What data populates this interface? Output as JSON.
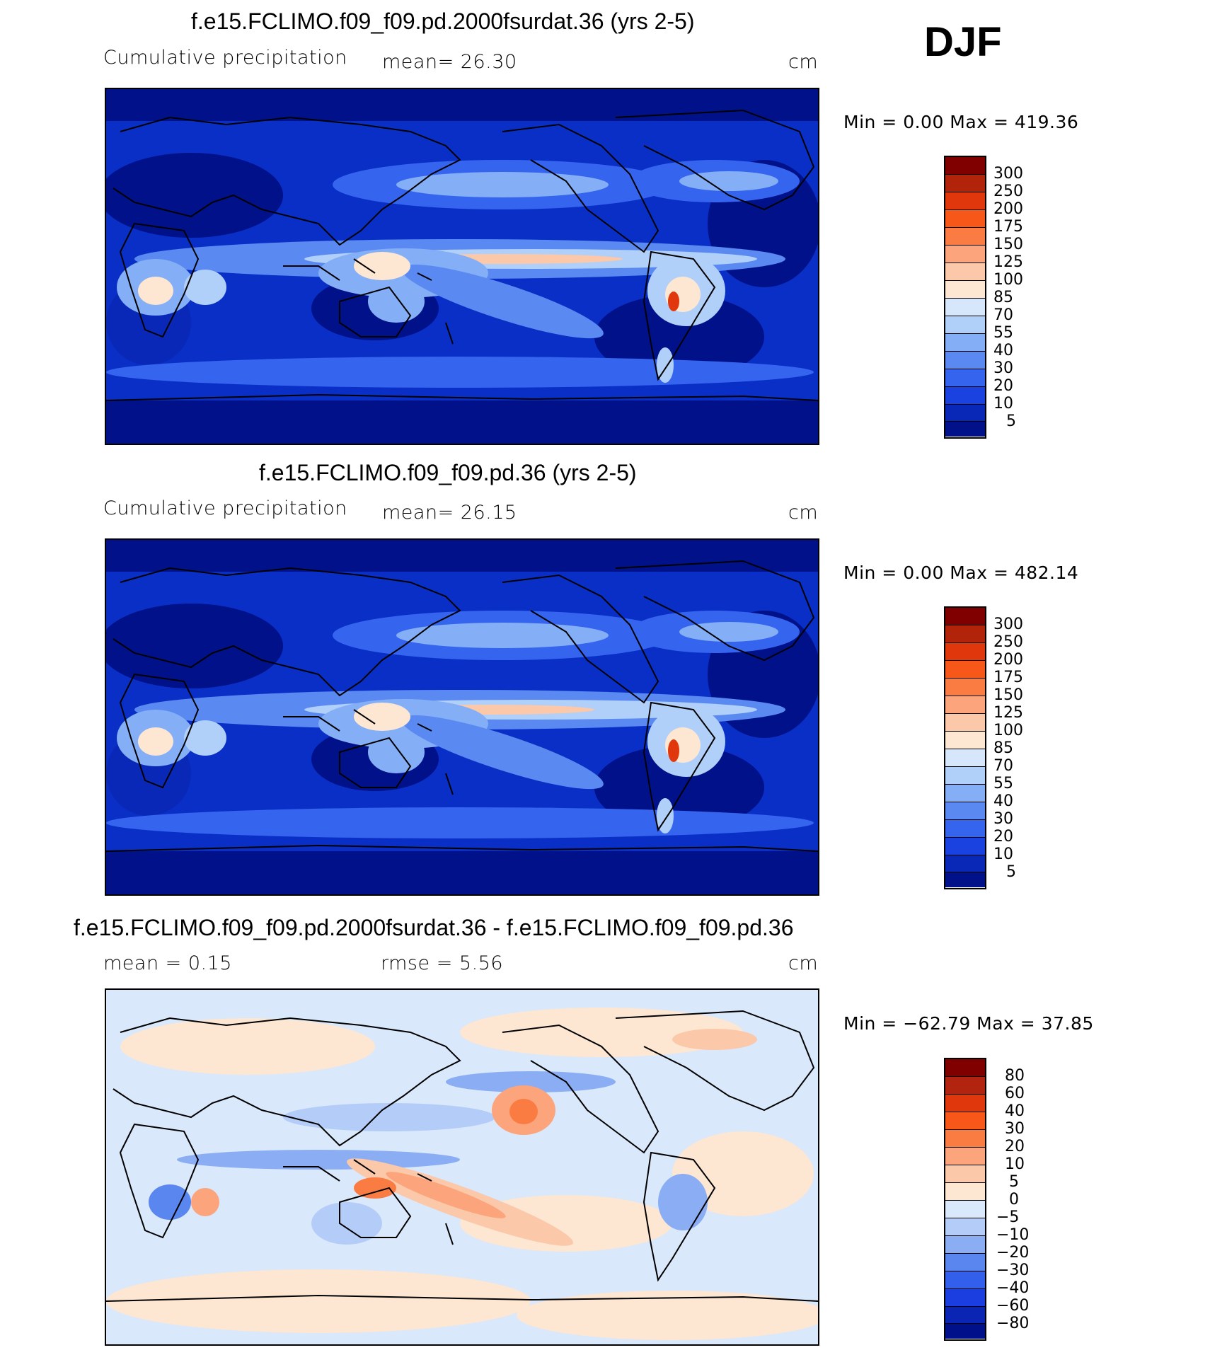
{
  "season_label": "DJF",
  "panels": [
    {
      "title": "f.e15.FCLIMO.f09_f09.pd.2000fsurdat.36 (yrs 2-5)",
      "left_label": "Cumulative precipitation",
      "stat_text": "mean=   26.30",
      "units": "cm",
      "minmax": "Min =    0.00 Max = 419.36",
      "colorbar_levels": [
        "300",
        "250",
        "200",
        "175",
        "150",
        "125",
        "100",
        "85",
        "70",
        "55",
        "40",
        "30",
        "20",
        "10",
        "5"
      ]
    },
    {
      "title": "f.e15.FCLIMO.f09_f09.pd.36 (yrs 2-5)",
      "left_label": "Cumulative precipitation",
      "stat_text": "mean=   26.15",
      "units": "cm",
      "minmax": "Min =    0.00 Max = 482.14",
      "colorbar_levels": [
        "300",
        "250",
        "200",
        "175",
        "150",
        "125",
        "100",
        "85",
        "70",
        "55",
        "40",
        "30",
        "20",
        "10",
        "5"
      ]
    },
    {
      "title": "f.e15.FCLIMO.f09_f09.pd.2000fsurdat.36 - f.e15.FCLIMO.f09_f09.pd.36",
      "left_label": "mean =    0.15",
      "stat_text": "rmse =    5.56",
      "units": "cm",
      "minmax": "Min = −62.79 Max =   37.85",
      "colorbar_levels": [
        "80",
        "60",
        "40",
        "30",
        "20",
        "10",
        "5",
        "0",
        "−5",
        "−10",
        "−20",
        "−30",
        "−40",
        "−60",
        "−80"
      ]
    }
  ],
  "colors": {
    "precip_scale": [
      "#800000",
      "#b2240a",
      "#e0380c",
      "#f8571a",
      "#fb7c43",
      "#fca47c",
      "#fcc8aa",
      "#fde6d2",
      "#d6e7fb",
      "#b0cff9",
      "#84aef5",
      "#5a8af1",
      "#3564ee",
      "#1a42e0",
      "#0a28b8",
      "#00118a"
    ],
    "diff_scale": [
      "#800000",
      "#b22410",
      "#e0380c",
      "#f8571a",
      "#fb7c43",
      "#fca47c",
      "#fcc8aa",
      "#fde6d2",
      "#d9e8fb",
      "#b4cdf8",
      "#8aadf4",
      "#5a86f0",
      "#3260ec",
      "#1a3ee0",
      "#0a24b4",
      "#00108a"
    ],
    "land_outline": "#000000"
  },
  "chart_data": [
    {
      "type": "heatmap",
      "title": "f.e15.FCLIMO.f09_f09.pd.2000fsurdat.36 (yrs 2-5)",
      "variable": "Cumulative precipitation",
      "units": "cm",
      "mean": 26.3,
      "min": 0.0,
      "max": 419.36,
      "contour_levels": [
        5,
        10,
        20,
        30,
        40,
        55,
        70,
        85,
        100,
        125,
        150,
        175,
        200,
        250,
        300
      ]
    },
    {
      "type": "heatmap",
      "title": "f.e15.FCLIMO.f09_f09.pd.36 (yrs 2-5)",
      "variable": "Cumulative precipitation",
      "units": "cm",
      "mean": 26.15,
      "min": 0.0,
      "max": 482.14,
      "contour_levels": [
        5,
        10,
        20,
        30,
        40,
        55,
        70,
        85,
        100,
        125,
        150,
        175,
        200,
        250,
        300
      ]
    },
    {
      "type": "heatmap",
      "title": "f.e15.FCLIMO.f09_f09.pd.2000fsurdat.36 - f.e15.FCLIMO.f09_f09.pd.36",
      "units": "cm",
      "mean": 0.15,
      "rmse": 5.56,
      "min": -62.79,
      "max": 37.85,
      "contour_levels": [
        -80,
        -60,
        -40,
        -30,
        -20,
        -10,
        -5,
        0,
        5,
        10,
        20,
        30,
        40,
        60,
        80
      ]
    }
  ]
}
